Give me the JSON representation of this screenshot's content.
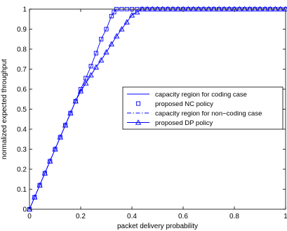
{
  "chart_data": {
    "type": "line",
    "xlabel": "packet delivery probability",
    "ylabel": "normalized expected throughput",
    "xlim": [
      0,
      1
    ],
    "ylim": [
      0,
      1
    ],
    "xticks": [
      "0",
      "0.2",
      "0.4",
      "0.6",
      "0.8",
      "1"
    ],
    "yticks": [
      "0",
      "0.1",
      "0.2",
      "0.3",
      "0.4",
      "0.5",
      "0.6",
      "0.7",
      "0.8",
      "0.9",
      "1"
    ],
    "legend_position": "center-right",
    "grid": false,
    "series": [
      {
        "name": "capacity region for coding case",
        "style": "solid",
        "marker": "none",
        "color": "#0000ff",
        "x": [
          0,
          0.02,
          0.04,
          0.06,
          0.08,
          0.1,
          0.12,
          0.14,
          0.16,
          0.18,
          0.2,
          0.22,
          0.24,
          0.26,
          0.28,
          0.3,
          0.32,
          0.33,
          0.34,
          0.36,
          0.38,
          0.4,
          0.45,
          0.5,
          0.6,
          0.7,
          0.8,
          0.9,
          1.0
        ],
        "y": [
          0,
          0.06,
          0.12,
          0.18,
          0.24,
          0.3,
          0.36,
          0.42,
          0.48,
          0.54,
          0.6,
          0.655,
          0.715,
          0.78,
          0.85,
          0.9,
          0.965,
          0.985,
          1.0,
          1.0,
          1.0,
          1.0,
          1.0,
          1.0,
          1.0,
          1.0,
          1.0,
          1.0,
          1.0
        ]
      },
      {
        "name": "proposed NC policy",
        "style": "none",
        "marker": "square",
        "color": "#0000ff",
        "x": [
          0,
          0.02,
          0.04,
          0.06,
          0.08,
          0.1,
          0.12,
          0.14,
          0.16,
          0.18,
          0.2,
          0.22,
          0.24,
          0.26,
          0.28,
          0.3,
          0.32,
          0.33,
          0.34,
          0.36,
          0.38,
          0.4,
          0.42,
          0.44,
          0.46,
          0.48,
          0.5,
          0.52,
          0.54,
          0.56,
          0.58,
          0.6,
          0.62,
          0.64,
          0.66,
          0.68,
          0.7,
          0.72,
          0.74,
          0.76,
          0.78,
          0.8,
          0.82,
          0.84,
          0.86,
          0.88,
          0.9,
          0.92,
          0.94,
          0.96,
          0.98,
          1.0
        ],
        "y": [
          0,
          0.06,
          0.12,
          0.18,
          0.24,
          0.3,
          0.36,
          0.42,
          0.48,
          0.54,
          0.6,
          0.655,
          0.715,
          0.78,
          0.85,
          0.9,
          0.965,
          0.985,
          1.0,
          1.0,
          1.0,
          1.0,
          1.0,
          1.0,
          1.0,
          1.0,
          1.0,
          1.0,
          1.0,
          1.0,
          1.0,
          1.0,
          1.0,
          1.0,
          1.0,
          1.0,
          1.0,
          1.0,
          1.0,
          1.0,
          1.0,
          1.0,
          1.0,
          1.0,
          1.0,
          1.0,
          1.0,
          1.0,
          1.0,
          1.0,
          1.0,
          1.0
        ]
      },
      {
        "name": "capacity region for non−coding case",
        "style": "dashdot",
        "marker": "none",
        "color": "#0000ff",
        "x": [
          0,
          0.02,
          0.04,
          0.06,
          0.08,
          0.1,
          0.12,
          0.14,
          0.16,
          0.18,
          0.2,
          0.22,
          0.24,
          0.26,
          0.28,
          0.3,
          0.32,
          0.34,
          0.36,
          0.38,
          0.4,
          0.42,
          0.44,
          0.46,
          0.5,
          0.6,
          0.7,
          0.8,
          0.9,
          1.0
        ],
        "y": [
          0,
          0.06,
          0.12,
          0.18,
          0.24,
          0.3,
          0.36,
          0.42,
          0.48,
          0.54,
          0.59,
          0.63,
          0.67,
          0.71,
          0.745,
          0.785,
          0.825,
          0.865,
          0.9,
          0.935,
          0.97,
          1.0,
          1.0,
          1.0,
          1.0,
          1.0,
          1.0,
          1.0,
          1.0,
          1.0
        ]
      },
      {
        "name": "proposed DP policy",
        "style": "solid",
        "marker": "triangle",
        "color": "#0000ff",
        "x": [
          0,
          0.02,
          0.04,
          0.06,
          0.08,
          0.1,
          0.12,
          0.14,
          0.16,
          0.18,
          0.2,
          0.22,
          0.24,
          0.26,
          0.28,
          0.3,
          0.32,
          0.34,
          0.36,
          0.38,
          0.4,
          0.42,
          0.44,
          0.46,
          0.48,
          0.5,
          0.52,
          0.54,
          0.56,
          0.58,
          0.6,
          0.62,
          0.64,
          0.66,
          0.68,
          0.7,
          0.72,
          0.74,
          0.76,
          0.78,
          0.8,
          0.82,
          0.84,
          0.86,
          0.88,
          0.9,
          0.92,
          0.94,
          0.96,
          0.98,
          1.0
        ],
        "y": [
          0,
          0.06,
          0.12,
          0.18,
          0.24,
          0.3,
          0.36,
          0.42,
          0.48,
          0.54,
          0.59,
          0.63,
          0.67,
          0.71,
          0.745,
          0.785,
          0.825,
          0.865,
          0.9,
          0.935,
          0.97,
          0.985,
          1.0,
          1.0,
          1.0,
          1.0,
          1.0,
          1.0,
          1.0,
          1.0,
          1.0,
          1.0,
          1.0,
          1.0,
          1.0,
          1.0,
          1.0,
          1.0,
          1.0,
          1.0,
          1.0,
          1.0,
          1.0,
          1.0,
          1.0,
          1.0,
          1.0,
          1.0,
          1.0,
          1.0,
          1.0
        ]
      }
    ]
  }
}
